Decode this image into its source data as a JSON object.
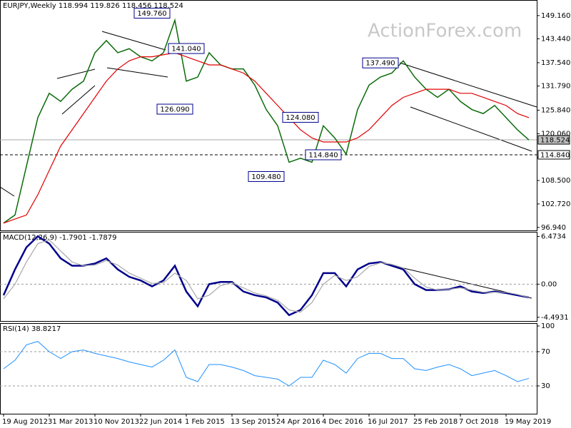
{
  "watermark": "ActionForex.com",
  "chart_data": [
    {
      "type": "line",
      "title": "EURJPY,Weekly 118.994 119.826 118.456 118.524",
      "ylim": [
        96.2,
        153.0
      ],
      "yticks": [
        {
          "value": 149.16,
          "label": "149.160"
        },
        {
          "value": 143.44,
          "label": "143.440"
        },
        {
          "value": 137.54,
          "label": "137.540"
        },
        {
          "value": 131.79,
          "label": "131.790"
        },
        {
          "value": 125.84,
          "label": "125.840"
        },
        {
          "value": 120.06,
          "label": "120.060"
        },
        {
          "value": 114.24,
          "label": "114.240"
        },
        {
          "value": 108.5,
          "label": "108.500"
        },
        {
          "value": 102.72,
          "label": "102.720"
        },
        {
          "value": 96.94,
          "label": "96.940"
        }
      ],
      "series": [
        {
          "name": "EURJPY",
          "color": "#0b6b0b",
          "width": 1.5,
          "values": [
            98,
            100,
            112,
            124,
            130,
            128,
            131,
            133,
            140,
            143,
            140,
            141,
            139,
            138,
            140,
            148,
            133,
            134,
            140,
            137,
            136,
            136,
            132,
            126,
            122,
            113,
            114,
            113,
            122,
            119,
            115,
            126,
            132,
            134,
            135,
            138,
            134,
            131,
            129,
            131,
            128,
            126,
            125,
            127,
            124,
            121,
            118.5
          ]
        },
        {
          "name": "SMA",
          "color": "#e00000",
          "width": 1.2,
          "values": [
            98,
            99,
            100,
            105,
            111,
            117,
            121,
            125,
            129,
            133,
            136,
            138,
            139,
            139,
            139.5,
            140,
            139,
            138,
            137,
            137,
            136,
            135,
            133,
            130,
            127,
            124,
            121,
            119,
            118,
            118,
            118,
            119,
            121,
            124,
            127,
            129,
            130,
            131,
            131,
            131,
            130,
            130,
            129,
            128,
            127,
            125,
            124
          ]
        }
      ],
      "annotations": [
        {
          "value": 149.76,
          "label": "149.760",
          "index": 13
        },
        {
          "value": 141.04,
          "label": "141.040",
          "index": 16
        },
        {
          "value": 126.09,
          "label": "126.090",
          "index": 15
        },
        {
          "value": 137.49,
          "label": "137.490",
          "index": 33
        },
        {
          "value": 124.08,
          "label": "124.080",
          "index": 26
        },
        {
          "value": 114.84,
          "label": "114.840",
          "index": 28
        },
        {
          "value": 109.48,
          "label": "109.480",
          "index": 23
        }
      ],
      "hlines": [
        {
          "value": 118.524,
          "label": "118.524",
          "dashed": false
        },
        {
          "value": 114.84,
          "label": "114.840",
          "dashed": true
        }
      ]
    },
    {
      "type": "line",
      "title": "MACD(12,26,9) -1.7901 -1.7879",
      "ylim": [
        -5.0,
        7.1
      ],
      "yticks": [
        6.4734,
        {
          "value": 0,
          "label": "0.00"
        },
        -4.4931
      ],
      "levels": [
        0
      ],
      "series": [
        {
          "name": "MACD",
          "color": "#00008b",
          "width": 2.5,
          "values": [
            -1.5,
            2,
            5,
            6.5,
            5.5,
            3.5,
            2.5,
            2.5,
            2.8,
            3.5,
            2,
            1,
            0.5,
            -0.3,
            0.5,
            2.5,
            -1,
            -3,
            0,
            0.3,
            0.3,
            -1,
            -1.5,
            -1.8,
            -2.5,
            -4.2,
            -3.5,
            -1.5,
            1.5,
            1.5,
            -0.3,
            2,
            2.8,
            3,
            2.5,
            2,
            0,
            -0.8,
            -0.8,
            -0.7,
            -0.3,
            -1,
            -1.2,
            -1,
            -1.2,
            -1.5,
            -1.8
          ]
        },
        {
          "name": "Signal",
          "color": "#a8a8a8",
          "width": 1.2,
          "values": [
            -2,
            0,
            3,
            5.5,
            6,
            4.5,
            3,
            2.5,
            2.6,
            3.2,
            2.6,
            1.5,
            0.8,
            0.1,
            0.2,
            1.5,
            0.5,
            -2,
            -1.5,
            -0.2,
            0.2,
            -0.5,
            -1.2,
            -1.6,
            -2.2,
            -3.5,
            -3.8,
            -2.5,
            0,
            1.2,
            0.5,
            1,
            2.4,
            2.9,
            2.7,
            2.2,
            0.8,
            -0.4,
            -0.8,
            -0.7,
            -0.5,
            -0.8,
            -1.1,
            -1.1,
            -1.1,
            -1.4,
            -1.8
          ]
        }
      ]
    },
    {
      "type": "line",
      "title": "RSI(14) 38.8217",
      "ylim": [
        0,
        100
      ],
      "yticks": [
        100,
        70,
        30
      ],
      "levels": [
        70,
        30
      ],
      "categories": [
        "19 Aug 2012",
        null,
        null,
        null,
        "31 Mar 2013",
        null,
        null,
        null,
        "10 Nov 2013",
        null,
        null,
        null,
        "22 Jun 2014",
        null,
        null,
        null,
        "1 Feb 2015",
        null,
        null,
        null,
        "13 Sep 2015",
        null,
        null,
        null,
        "24 Apr 2016",
        null,
        null,
        null,
        "4 Dec 2016",
        null,
        null,
        null,
        "16 Jul 2017",
        null,
        null,
        null,
        "25 Feb 2018",
        null,
        null,
        null,
        "7 Oct 2018",
        null,
        null,
        null,
        "19 May 2019",
        null,
        null
      ],
      "series": [
        {
          "name": "RSI",
          "color": "#1e90ff",
          "width": 1,
          "values": [
            50,
            60,
            78,
            82,
            70,
            62,
            70,
            72,
            68,
            65,
            62,
            58,
            55,
            52,
            60,
            72,
            40,
            35,
            55,
            55,
            52,
            48,
            42,
            40,
            38,
            30,
            40,
            40,
            60,
            55,
            45,
            62,
            68,
            68,
            62,
            62,
            50,
            48,
            52,
            55,
            50,
            42,
            45,
            48,
            42,
            35,
            38.8
          ]
        }
      ]
    }
  ]
}
